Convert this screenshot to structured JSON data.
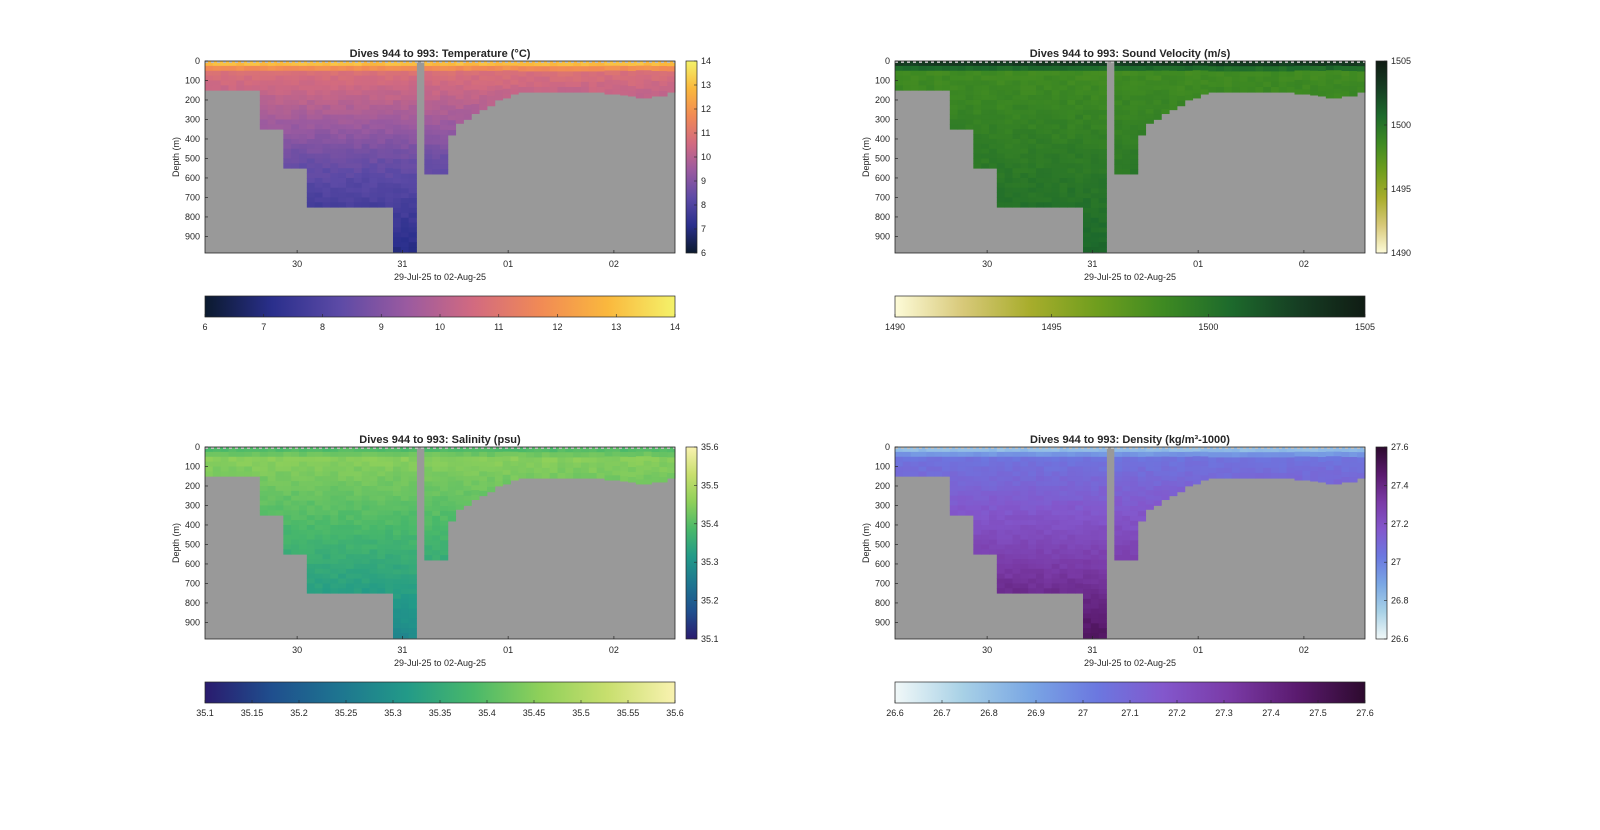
{
  "x_axis_label": "29-Jul-25 to 02-Aug-25",
  "y_axis_label": "Depth (m)",
  "depth_ticks": [
    "0",
    "100",
    "200",
    "300",
    "400",
    "500",
    "600",
    "700",
    "800",
    "900"
  ],
  "date_ticks": [
    "30",
    "31",
    "01",
    "02"
  ],
  "no_data_color": "#999999",
  "chart_data": [
    {
      "type": "heatmap",
      "title": "Dives 944 to 993: Temperature (°C)",
      "variable": "temperature",
      "colormap": [
        "#0b1a2e",
        "#2a2f8c",
        "#5c4aa6",
        "#9a5aa0",
        "#d26a80",
        "#f18a55",
        "#fab83d",
        "#f4f26a"
      ],
      "clim": [
        6,
        14
      ],
      "side_colorbar_ticks": [
        "6",
        "7",
        "8",
        "9",
        "10",
        "11",
        "12",
        "13",
        "14"
      ],
      "bottom_colorbar_ticks": [
        "6",
        "7",
        "8",
        "9",
        "10",
        "11",
        "12",
        "13",
        "14"
      ],
      "surface_value": 13.5,
      "mid_value": 10.8,
      "deep_value": 8.6,
      "bottom_value": 7.0
    },
    {
      "type": "heatmap",
      "title": "Dives 944 to 993: Sound Velocity (m/s)",
      "variable": "sound_velocity",
      "colormap": [
        "#fdfbd8",
        "#d8c97a",
        "#a8ad2c",
        "#6f9e1e",
        "#3e8a22",
        "#1d6a2c",
        "#163e23",
        "#101c14"
      ],
      "clim": [
        1490,
        1505
      ],
      "side_colorbar_ticks": [
        "1490",
        "1495",
        "1500",
        "1505"
      ],
      "bottom_colorbar_ticks": [
        "1490",
        "1495",
        "1500",
        "1505"
      ],
      "surface_value": 1504.2,
      "mid_value": 1498.5,
      "deep_value": 1499.6,
      "bottom_value": 1500.8
    },
    {
      "type": "heatmap",
      "title": "Dives 944 to 993: Salinity (psu)",
      "variable": "salinity",
      "colormap": [
        "#2a1b6e",
        "#1f4f8e",
        "#1e7590",
        "#229a88",
        "#49b86a",
        "#8fd05a",
        "#c8df6e",
        "#f9f2b0"
      ],
      "clim": [
        35.1,
        35.6
      ],
      "side_colorbar_ticks": [
        "35.1",
        "35.2",
        "35.3",
        "35.4",
        "35.5",
        "35.6"
      ],
      "bottom_colorbar_ticks": [
        "35.1",
        "35.15",
        "35.2",
        "35.25",
        "35.3",
        "35.35",
        "35.4",
        "35.45",
        "35.5",
        "35.55",
        "35.6"
      ],
      "surface_value": 35.38,
      "mid_value": 35.45,
      "deep_value": 35.37,
      "bottom_value": 35.28
    },
    {
      "type": "heatmap",
      "title": "Dives 944 to 993: Density (kg/m³-1000)",
      "variable": "density",
      "colormap": [
        "#f1f8f8",
        "#a8d1e6",
        "#7aa7e4",
        "#6b78e0",
        "#8357cc",
        "#7a3aa6",
        "#5a1a6e",
        "#2d0a2e"
      ],
      "clim": [
        26.6,
        27.6
      ],
      "side_colorbar_ticks": [
        "26.6",
        "26.8",
        "27",
        "27.2",
        "27.4",
        "27.6"
      ],
      "bottom_colorbar_ticks": [
        "26.6",
        "26.7",
        "26.8",
        "26.9",
        "27",
        "27.1",
        "27.2",
        "27.3",
        "27.4",
        "27.5",
        "27.6"
      ],
      "surface_value": 26.75,
      "mid_value": 27.05,
      "deep_value": 27.25,
      "bottom_value": 27.5
    }
  ],
  "dive_depths_m": [
    150,
    150,
    150,
    150,
    150,
    150,
    150,
    350,
    350,
    350,
    550,
    550,
    550,
    750,
    750,
    750,
    750,
    750,
    750,
    750,
    750,
    750,
    750,
    750,
    980,
    980,
    980,
    0,
    580,
    580,
    580,
    380,
    320,
    300,
    270,
    250,
    230,
    200,
    190,
    170,
    160,
    160,
    160,
    160,
    160,
    160,
    160,
    160,
    160,
    160,
    160,
    170,
    170,
    175,
    180,
    190,
    190,
    180,
    180,
    160
  ]
}
